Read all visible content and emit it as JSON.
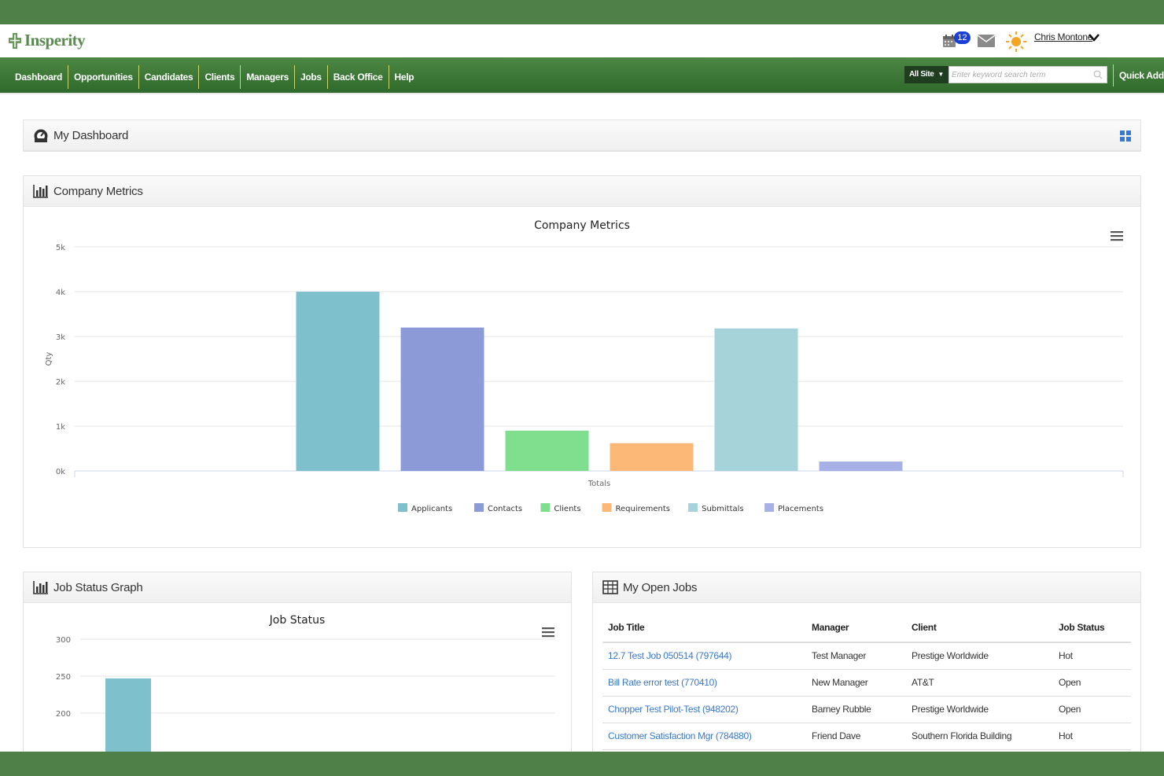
{
  "header": {
    "logo_text": "Insperity",
    "notification_count": "12",
    "user_name": "Chris Montone"
  },
  "nav": {
    "items": [
      "Dashboard",
      "Opportunities",
      "Candidates",
      "Clients",
      "Managers",
      "Jobs",
      "Back Office",
      "Help"
    ],
    "search_scope": "All Site",
    "search_placeholder": "Enter keyword search term",
    "quick_add": "Quick Add"
  },
  "dashboard": {
    "title": "My Dashboard"
  },
  "company_metrics": {
    "panel_title": "Company Metrics"
  },
  "job_status": {
    "panel_title": "Job Status Graph"
  },
  "open_jobs": {
    "panel_title": "My Open Jobs",
    "columns": [
      "Job Title",
      "Manager",
      "Client",
      "Job Status"
    ],
    "rows": [
      [
        "12.7 Test Job 050514 (797644)",
        "Test Manager",
        "Prestige Worldwide",
        "Hot"
      ],
      [
        "Bill Rate error test (770410)",
        "New Manager",
        "AT&T",
        "Open"
      ],
      [
        "Chopper Test Pilot-Test (948202)",
        "Barney Rubble",
        "Prestige Worldwide",
        "Open"
      ],
      [
        "Customer Satisfaction Mgr (784880)",
        "Friend Dave",
        "Southern Florida Building",
        "Hot"
      ]
    ]
  },
  "chart_data": [
    {
      "type": "bar",
      "title": "Company Metrics",
      "ylabel": "Qty",
      "categories": [
        "Totals"
      ],
      "series": [
        {
          "name": "Applicants",
          "values": [
            4000
          ],
          "color": "#7ec0cc"
        },
        {
          "name": "Contacts",
          "values": [
            3200
          ],
          "color": "#8c9ad8"
        },
        {
          "name": "Clients",
          "values": [
            900
          ],
          "color": "#7fdf8f"
        },
        {
          "name": "Requirements",
          "values": [
            620
          ],
          "color": "#fbb877"
        },
        {
          "name": "Submittals",
          "values": [
            3180
          ],
          "color": "#a6d3d9"
        },
        {
          "name": "Placements",
          "values": [
            210
          ],
          "color": "#a8b1e6"
        }
      ],
      "ylim": [
        0,
        5000
      ],
      "yticks": [
        "0k",
        "1k",
        "2k",
        "3k",
        "4k",
        "5k"
      ],
      "legend": "bottom",
      "grid": true
    },
    {
      "type": "bar",
      "title": "Job Status",
      "series": [
        {
          "name": "",
          "values": [
            247
          ],
          "color": "#7ec0cc"
        }
      ],
      "ylim": [
        175,
        300
      ],
      "yticks": [
        "200",
        "250",
        "300"
      ],
      "grid": true
    }
  ]
}
